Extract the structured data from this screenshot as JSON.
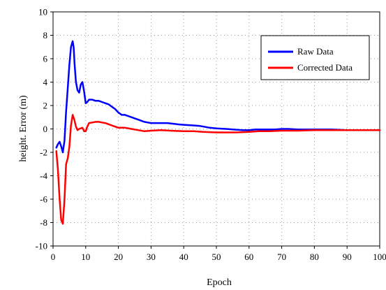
{
  "chart_data": {
    "type": "line",
    "title": "",
    "xlabel": "Epoch",
    "ylabel": "height. Error (m)",
    "xlim": [
      0,
      100
    ],
    "ylim": [
      -10,
      10
    ],
    "x_ticks": [
      0,
      10,
      20,
      30,
      40,
      50,
      60,
      70,
      80,
      90,
      100
    ],
    "y_ticks": [
      -10,
      -8,
      -6,
      -4,
      -2,
      0,
      2,
      4,
      6,
      8,
      10
    ],
    "grid": true,
    "legend_position": "top-right",
    "series": [
      {
        "name": "Raw Data",
        "color": "#0000ff",
        "points": [
          [
            1,
            -1.6
          ],
          [
            1.5,
            -1.3
          ],
          [
            2,
            -1.1
          ],
          [
            2.5,
            -1.5
          ],
          [
            3,
            -2.0
          ],
          [
            3.5,
            -1.0
          ],
          [
            4,
            1.5
          ],
          [
            4.5,
            3.5
          ],
          [
            5,
            5.5
          ],
          [
            5.5,
            7.0
          ],
          [
            6,
            7.5
          ],
          [
            6.3,
            7.0
          ],
          [
            6.6,
            5.5
          ],
          [
            7,
            4.0
          ],
          [
            7.5,
            3.3
          ],
          [
            8,
            3.1
          ],
          [
            8.5,
            3.8
          ],
          [
            9,
            4.0
          ],
          [
            9.5,
            3.2
          ],
          [
            10,
            2.2
          ],
          [
            10.5,
            2.3
          ],
          [
            11,
            2.5
          ],
          [
            12,
            2.5
          ],
          [
            13,
            2.4
          ],
          [
            14,
            2.4
          ],
          [
            15,
            2.3
          ],
          [
            16,
            2.2
          ],
          [
            17,
            2.1
          ],
          [
            18,
            1.9
          ],
          [
            19,
            1.7
          ],
          [
            20,
            1.4
          ],
          [
            21,
            1.2
          ],
          [
            22,
            1.2
          ],
          [
            23,
            1.1
          ],
          [
            24,
            1.0
          ],
          [
            25,
            0.9
          ],
          [
            26,
            0.8
          ],
          [
            27,
            0.7
          ],
          [
            28,
            0.6
          ],
          [
            29,
            0.55
          ],
          [
            30,
            0.5
          ],
          [
            32,
            0.5
          ],
          [
            35,
            0.5
          ],
          [
            38,
            0.4
          ],
          [
            40,
            0.35
          ],
          [
            43,
            0.3
          ],
          [
            45,
            0.25
          ],
          [
            48,
            0.1
          ],
          [
            50,
            0.05
          ],
          [
            53,
            0.0
          ],
          [
            55,
            -0.05
          ],
          [
            58,
            -0.1
          ],
          [
            60,
            -0.1
          ],
          [
            62,
            -0.05
          ],
          [
            65,
            -0.05
          ],
          [
            68,
            -0.05
          ],
          [
            70,
            0.0
          ],
          [
            72,
            0.0
          ],
          [
            75,
            -0.05
          ],
          [
            78,
            -0.05
          ],
          [
            80,
            -0.05
          ],
          [
            85,
            -0.05
          ],
          [
            90,
            -0.1
          ],
          [
            95,
            -0.1
          ],
          [
            100,
            -0.1
          ]
        ]
      },
      {
        "name": "Corrected Data",
        "color": "#ff0000",
        "points": [
          [
            1,
            -1.9
          ],
          [
            1.5,
            -3.5
          ],
          [
            2,
            -6.0
          ],
          [
            2.5,
            -7.8
          ],
          [
            3,
            -8.1
          ],
          [
            3.5,
            -6.0
          ],
          [
            4,
            -3.0
          ],
          [
            4.5,
            -2.5
          ],
          [
            5,
            -1.5
          ],
          [
            5.5,
            0.3
          ],
          [
            6,
            1.2
          ],
          [
            6.5,
            0.8
          ],
          [
            7,
            0.2
          ],
          [
            7.5,
            -0.1
          ],
          [
            8,
            0.0
          ],
          [
            9,
            0.1
          ],
          [
            9.5,
            -0.2
          ],
          [
            10,
            -0.2
          ],
          [
            10.5,
            0.2
          ],
          [
            11,
            0.5
          ],
          [
            12,
            0.55
          ],
          [
            13,
            0.6
          ],
          [
            14,
            0.6
          ],
          [
            15,
            0.55
          ],
          [
            16,
            0.5
          ],
          [
            17,
            0.4
          ],
          [
            18,
            0.3
          ],
          [
            19,
            0.2
          ],
          [
            20,
            0.1
          ],
          [
            22,
            0.1
          ],
          [
            24,
            0.0
          ],
          [
            26,
            -0.1
          ],
          [
            28,
            -0.2
          ],
          [
            30,
            -0.15
          ],
          [
            33,
            -0.1
          ],
          [
            36,
            -0.15
          ],
          [
            40,
            -0.2
          ],
          [
            43,
            -0.2
          ],
          [
            46,
            -0.25
          ],
          [
            50,
            -0.3
          ],
          [
            53,
            -0.3
          ],
          [
            56,
            -0.3
          ],
          [
            60,
            -0.25
          ],
          [
            63,
            -0.2
          ],
          [
            66,
            -0.2
          ],
          [
            70,
            -0.15
          ],
          [
            72,
            -0.15
          ],
          [
            75,
            -0.15
          ],
          [
            80,
            -0.1
          ],
          [
            85,
            -0.1
          ],
          [
            90,
            -0.1
          ],
          [
            95,
            -0.1
          ],
          [
            100,
            -0.1
          ]
        ]
      }
    ]
  }
}
